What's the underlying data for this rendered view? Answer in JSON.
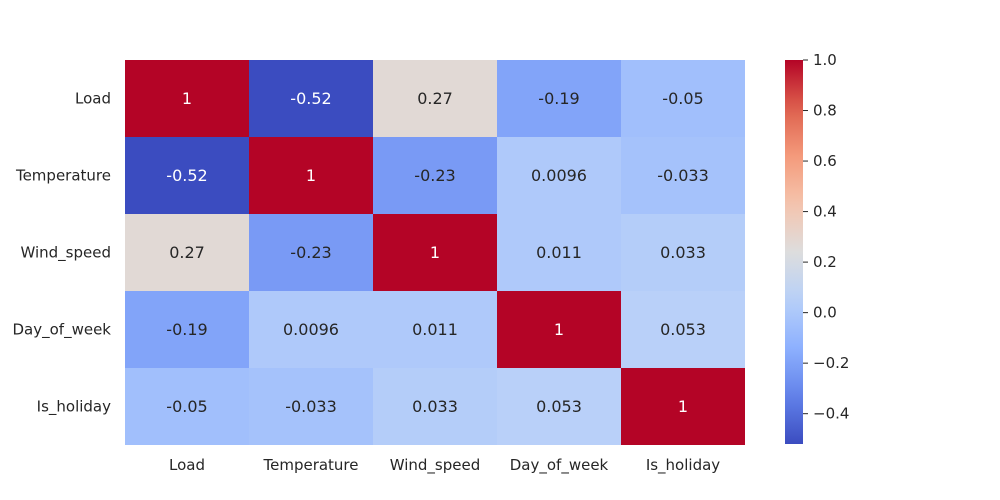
{
  "chart_data": {
    "type": "heatmap",
    "title": "",
    "xlabel": "",
    "ylabel": "",
    "x_categories": [
      "Load",
      "Temperature",
      "Wind_speed",
      "Day_of_week",
      "Is_holiday"
    ],
    "y_categories": [
      "Load",
      "Temperature",
      "Wind_speed",
      "Day_of_week",
      "Is_holiday"
    ],
    "values": [
      [
        1,
        -0.52,
        0.27,
        -0.19,
        -0.05
      ],
      [
        -0.52,
        1,
        -0.23,
        0.0096,
        -0.033
      ],
      [
        0.27,
        -0.23,
        1,
        0.011,
        0.033
      ],
      [
        -0.19,
        0.0096,
        0.011,
        1,
        0.053
      ],
      [
        -0.05,
        -0.033,
        0.033,
        0.053,
        1
      ]
    ],
    "cell_labels": [
      [
        "1",
        "-0.52",
        "0.27",
        "-0.19",
        "-0.05"
      ],
      [
        "-0.52",
        "1",
        "-0.23",
        "0.0096",
        "-0.033"
      ],
      [
        "0.27",
        "-0.23",
        "1",
        "0.011",
        "0.033"
      ],
      [
        "-0.19",
        "0.0096",
        "0.011",
        "1",
        "0.053"
      ],
      [
        "-0.05",
        "-0.033",
        "0.033",
        "0.053",
        "1"
      ]
    ],
    "colormap": "coolwarm",
    "color_range": [
      -0.52,
      1
    ],
    "colorbar": {
      "ticks": [
        1.0,
        0.8,
        0.6,
        0.4,
        0.2,
        0.0,
        -0.2,
        -0.4
      ],
      "tick_labels": [
        "1.0",
        "0.8",
        "0.6",
        "0.4",
        "0.2",
        "0.0",
        "−0.2",
        "−0.4"
      ],
      "position": "right"
    },
    "grid": false
  }
}
